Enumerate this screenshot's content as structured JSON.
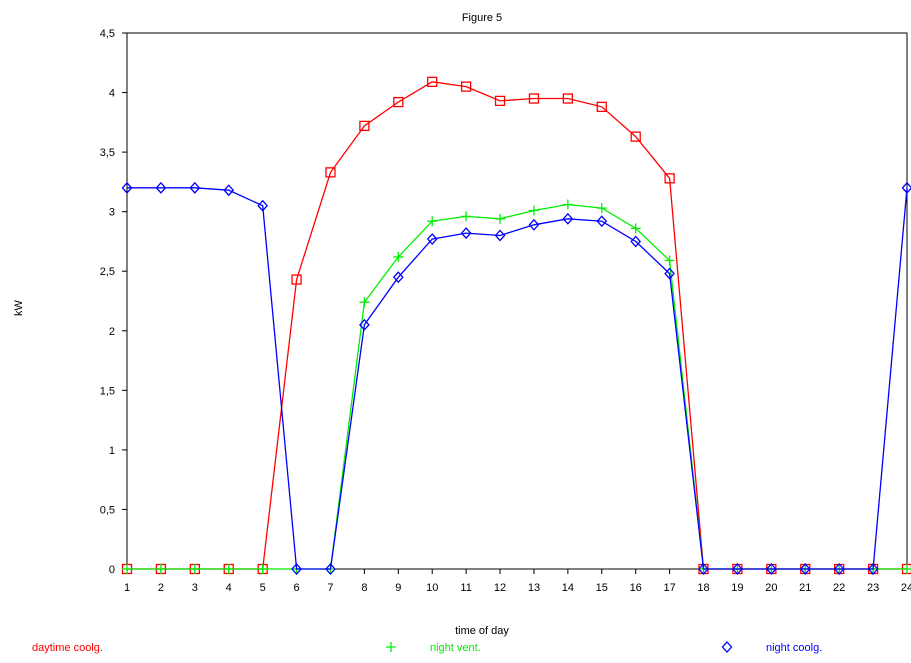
{
  "chart_data": {
    "type": "line",
    "title": "Figure 5",
    "xlabel": "time of day",
    "ylabel": "kW",
    "x": [
      1,
      2,
      3,
      4,
      5,
      6,
      7,
      8,
      9,
      10,
      11,
      12,
      13,
      14,
      15,
      16,
      17,
      18,
      19,
      20,
      21,
      22,
      23,
      24
    ],
    "xlim": [
      1,
      24
    ],
    "ylim": [
      0,
      4.5
    ],
    "y_ticks": [
      0,
      0.5,
      1,
      1.5,
      2,
      2.5,
      3,
      3.5,
      4,
      4.5
    ],
    "y_tick_labels": [
      "0",
      "0,5",
      "1",
      "1,5",
      "2",
      "2,5",
      "3",
      "3,5",
      "4",
      "4,5"
    ],
    "grid": false,
    "legend_position": "bottom",
    "series": [
      {
        "name": "daytime coolg.",
        "color": "#ff0000",
        "marker": "square",
        "values": [
          0,
          0,
          0,
          0,
          0,
          2.43,
          3.33,
          3.72,
          3.92,
          4.09,
          4.05,
          3.93,
          3.95,
          3.95,
          3.88,
          3.63,
          3.28,
          0,
          0,
          0,
          0,
          0,
          0,
          0
        ]
      },
      {
        "name": "night vent.",
        "color": "#00ee00",
        "marker": "plus",
        "values": [
          0,
          0,
          0,
          0,
          0,
          0,
          0,
          2.24,
          2.62,
          2.92,
          2.96,
          2.94,
          3.01,
          3.06,
          3.03,
          2.86,
          2.59,
          0,
          0,
          0,
          0,
          0,
          0,
          0
        ]
      },
      {
        "name": "night coolg.",
        "color": "#0000ff",
        "marker": "diamond",
        "values": [
          3.2,
          3.2,
          3.2,
          3.18,
          3.05,
          0,
          0,
          2.05,
          2.45,
          2.77,
          2.82,
          2.8,
          2.89,
          2.94,
          2.92,
          2.75,
          2.48,
          0,
          0,
          0,
          0,
          0,
          0,
          3.2
        ]
      }
    ]
  }
}
